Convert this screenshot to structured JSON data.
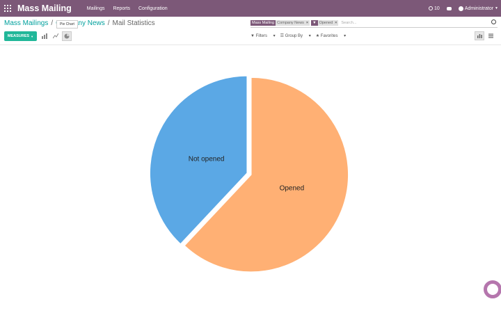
{
  "topbar": {
    "app_title": "Mass Mailing",
    "menu": [
      "Mailings",
      "Reports",
      "Configuration"
    ],
    "activity_count": "10",
    "user": "Administrator"
  },
  "breadcrumb": {
    "first": "Mass Mailings",
    "second": "Company News",
    "current": "Mail Statistics"
  },
  "tooltip": "Pie Chart",
  "search": {
    "facet1_label": "Mass Mailing",
    "facet1_value": "Company News",
    "facet2_value": "Opened",
    "placeholder": "Search..."
  },
  "toolbar": {
    "measures_label": "MEASURES",
    "filters_label": "Filters",
    "groupby_label": "Group By",
    "favorites_label": "Favorites"
  },
  "colors": {
    "accent": "#7c5878",
    "primary": "#21b799",
    "opened": "#ffb074",
    "not_opened": "#5ba8e5"
  },
  "chart_data": {
    "type": "pie",
    "categories": [
      "Not opened",
      "Opened"
    ],
    "values": [
      38,
      62
    ],
    "colors": [
      "#5ba8e5",
      "#ffb074"
    ]
  }
}
